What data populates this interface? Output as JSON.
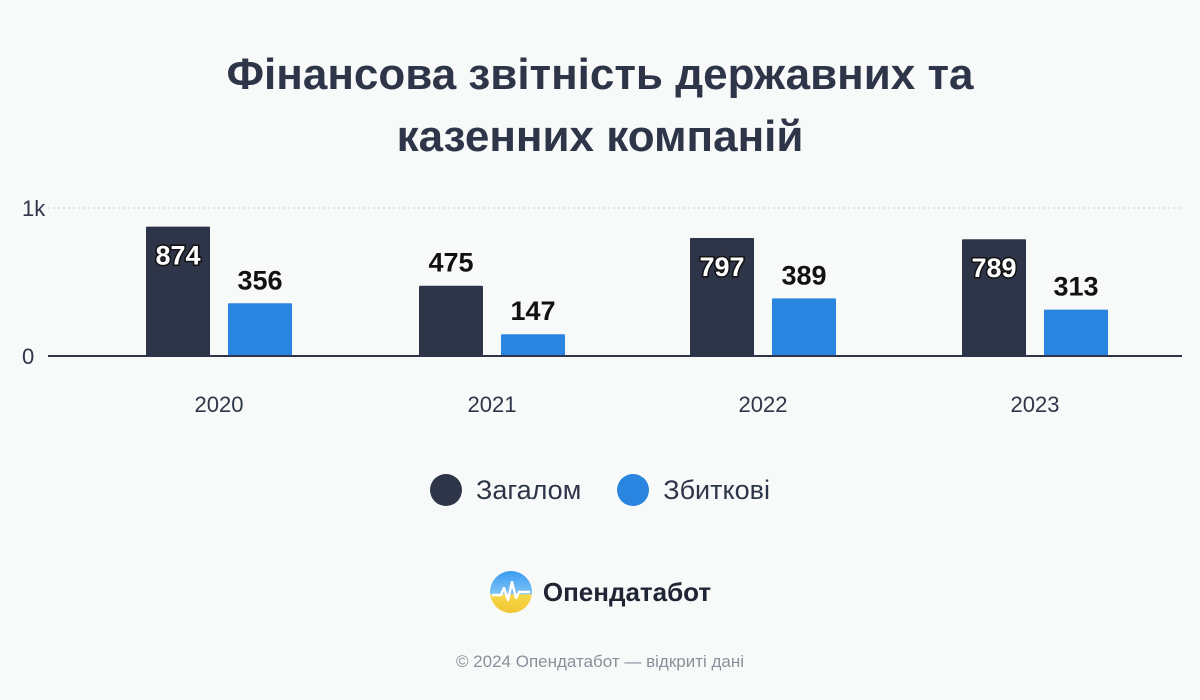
{
  "title_lines": [
    "Фінансова звітність державних та",
    "казенних компаній"
  ],
  "chart_data": {
    "type": "bar",
    "title": "Фінансова звітність державних та казенних компаній",
    "categories": [
      "2020",
      "2021",
      "2022",
      "2023"
    ],
    "series": [
      {
        "name": "Загалом",
        "values": [
          874,
          475,
          797,
          789
        ],
        "color": "#2e3549"
      },
      {
        "name": "Збиткові",
        "values": [
          356,
          147,
          389,
          313
        ],
        "color": "#2a85e0"
      }
    ],
    "ylim": [
      0,
      1000
    ],
    "yticks": [
      {
        "value": 0,
        "label": "0"
      },
      {
        "value": 1000,
        "label": "1k"
      }
    ],
    "grid": true,
    "legend_position": "bottom"
  },
  "legend": [
    {
      "label": "Загалом",
      "color": "#2e3549"
    },
    {
      "label": "Збиткові",
      "color": "#2a85e0"
    }
  ],
  "brand": {
    "name": "Опендатабот",
    "logo_icon": "opendatabot-logo-icon"
  },
  "footer": "© 2024 Опендатабот — відкриті дані"
}
